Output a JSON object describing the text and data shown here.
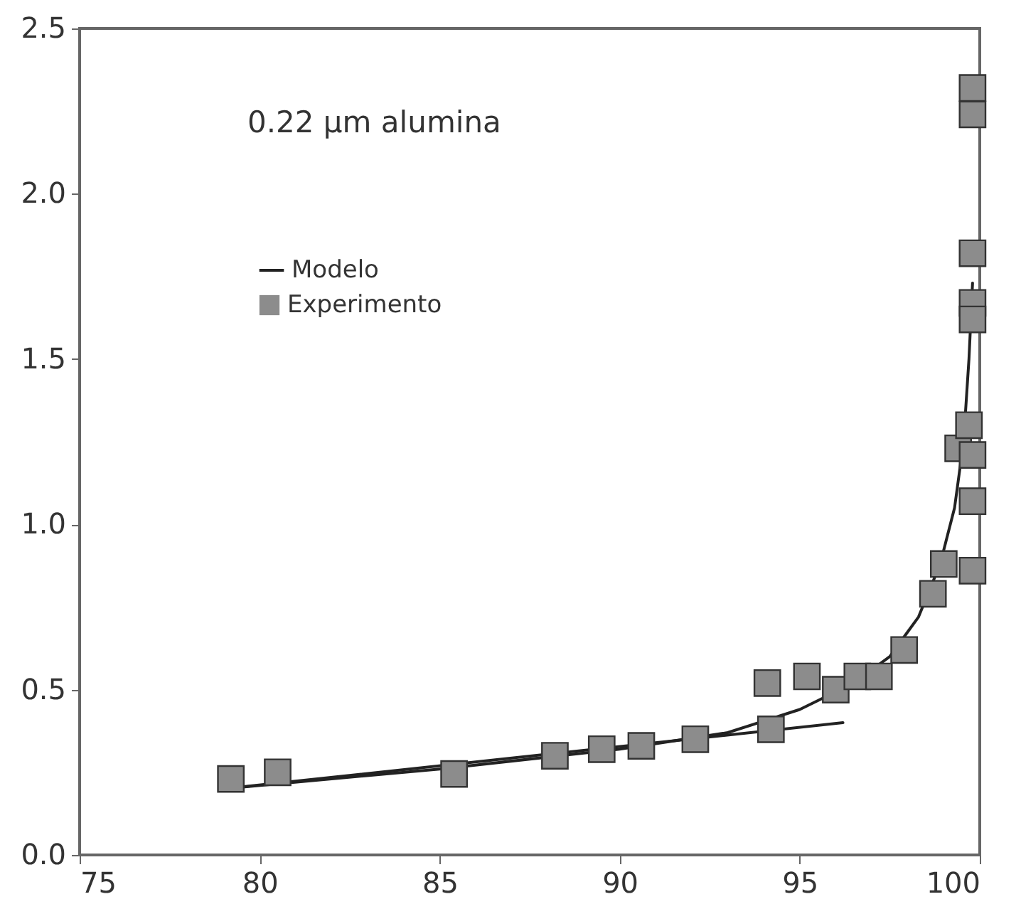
{
  "chart_data": {
    "type": "scatter",
    "annotations": [
      "0.22 µm alumina"
    ],
    "xlim": [
      75,
      100
    ],
    "xticks": [
      75,
      80,
      85,
      90,
      95,
      100
    ],
    "ylim": [
      0,
      2.5
    ],
    "yticks": [
      {
        "value": 0,
        "label": "0.0"
      },
      {
        "value": 0.5,
        "label": "0.5"
      },
      {
        "value": 1,
        "label": "1.0"
      },
      {
        "value": 1.5,
        "label": "1.5"
      },
      {
        "value": 2,
        "label": "2.0"
      },
      {
        "value": 2.5,
        "label": "2.5"
      }
    ],
    "grid": false,
    "legend": "top left",
    "series": [
      {
        "type": "line",
        "name": "Modelo",
        "color": "#222222",
        "line_style": "solid",
        "marker": "none",
        "x": [
          79,
          85,
          90,
          93,
          95,
          96.5,
          97.5,
          98.3,
          98.9,
          99.3,
          99.55,
          99.7,
          99.8
        ],
        "values": [
          0.2,
          0.26,
          0.32,
          0.37,
          0.44,
          0.52,
          0.6,
          0.72,
          0.88,
          1.05,
          1.25,
          1.5,
          1.73
        ]
      },
      {
        "type": "line",
        "color": "#222222",
        "line_style": "solid",
        "marker": "none",
        "x": [
          79,
          96.2
        ],
        "values": [
          0.2,
          0.4
        ]
      },
      {
        "type": "scatter",
        "name": "Experimento",
        "color": "#8c8c8c",
        "marker": "square",
        "x": [
          79.2,
          80.5,
          85.4,
          88.2,
          89.5,
          90.6,
          92.1,
          94.1,
          94.2,
          95.2,
          96.0,
          96.6,
          97.2,
          97.9,
          98.7,
          99.0,
          99.8,
          99.8,
          99.4,
          99.7,
          99.8,
          99.8,
          99.8,
          99.8,
          99.8,
          99.8
        ],
        "values": [
          0.23,
          0.25,
          0.245,
          0.3,
          0.32,
          0.33,
          0.35,
          0.52,
          0.38,
          0.54,
          0.5,
          0.54,
          0.54,
          0.62,
          0.79,
          0.88,
          0.86,
          1.07,
          1.23,
          1.3,
          1.21,
          1.67,
          1.62,
          1.82,
          2.32,
          2.24
        ]
      }
    ]
  }
}
